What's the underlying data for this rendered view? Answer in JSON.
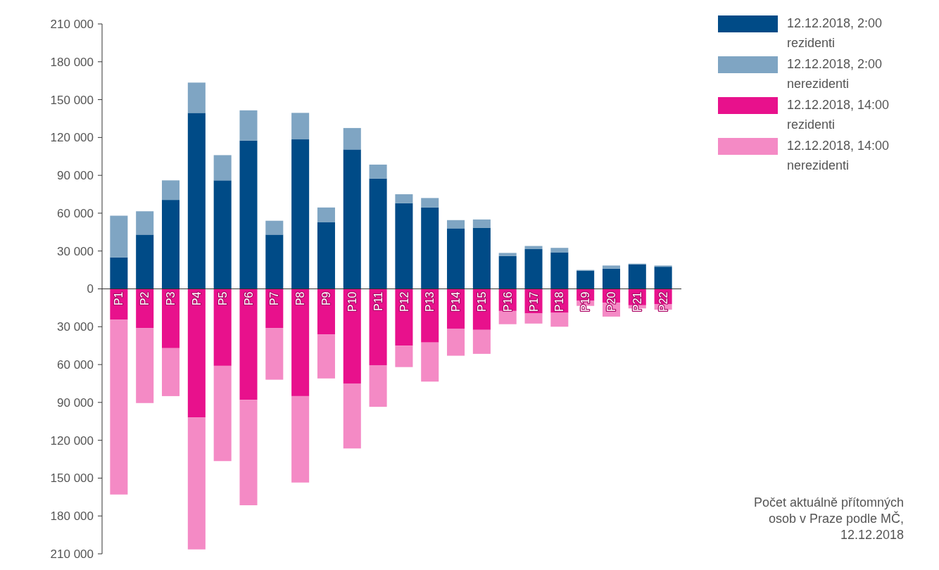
{
  "chart_data": {
    "type": "bar",
    "stacked": true,
    "categories": [
      "P1",
      "P2",
      "P3",
      "P4",
      "P5",
      "P6",
      "P7",
      "P8",
      "P9",
      "P10",
      "P11",
      "P12",
      "P13",
      "P14",
      "P15",
      "P16",
      "P17",
      "P18",
      "P19",
      "P20",
      "P21",
      "P22"
    ],
    "series": [
      {
        "name": "12.12.2018, 2:00\nrezidenti",
        "color": "#004b87",
        "values": [
          25000,
          43000,
          70500,
          139500,
          86000,
          117500,
          43000,
          118500,
          53000,
          110500,
          87500,
          68000,
          64500,
          48000,
          48500,
          26000,
          31500,
          29000,
          14500,
          16000,
          19500,
          17500
        ]
      },
      {
        "name": "12.12.2018, 2:00\nnerezidenti",
        "color": "#7fa5c3",
        "values": [
          33000,
          18500,
          15500,
          24000,
          20000,
          24000,
          11000,
          21000,
          11500,
          17000,
          11000,
          7000,
          7500,
          6500,
          6500,
          2500,
          2500,
          3500,
          500,
          2500,
          500,
          1000
        ]
      },
      {
        "name": "12.12.2018, 14:00\nrezidenti",
        "color": "#e8118c",
        "values": [
          -24500,
          -31000,
          -47000,
          -102000,
          -61000,
          -88000,
          -31000,
          -85000,
          -36000,
          -75000,
          -60500,
          -45000,
          -42500,
          -31500,
          -32500,
          -17500,
          -19500,
          -19000,
          -9500,
          -11000,
          -13000,
          -12000
        ]
      },
      {
        "name": "12.12.2018, 14:00\nnerezidenti",
        "color": "#f48ac5",
        "values": [
          -138500,
          -59500,
          -38000,
          -104500,
          -75500,
          -83500,
          -41000,
          -68500,
          -35000,
          -51500,
          -33000,
          -17000,
          -31000,
          -21500,
          -19000,
          -10500,
          -8000,
          -11000,
          -4000,
          -11000,
          -2500,
          -4500
        ]
      }
    ],
    "ylim": [
      -210000,
      210000
    ],
    "yticks": [
      {
        "value": -210000,
        "label": "210 000"
      },
      {
        "value": -180000,
        "label": "180 000"
      },
      {
        "value": -150000,
        "label": "150 000"
      },
      {
        "value": -120000,
        "label": "120 000"
      },
      {
        "value": -90000,
        "label": "90 000"
      },
      {
        "value": -60000,
        "label": "60 000"
      },
      {
        "value": -30000,
        "label": "30 000"
      },
      {
        "value": 0,
        "label": "0"
      },
      {
        "value": 30000,
        "label": "30 000"
      },
      {
        "value": 60000,
        "label": "60 000"
      },
      {
        "value": 90000,
        "label": "90 000"
      },
      {
        "value": 120000,
        "label": "120 000"
      },
      {
        "value": 150000,
        "label": "150 000"
      },
      {
        "value": 180000,
        "label": "180 000"
      },
      {
        "value": 210000,
        "label": "210 000"
      }
    ],
    "legend": "top right",
    "annotations": [
      "Počet aktuálně přítomných\nosob v Praze podle MČ,\n12.12.2018"
    ]
  }
}
